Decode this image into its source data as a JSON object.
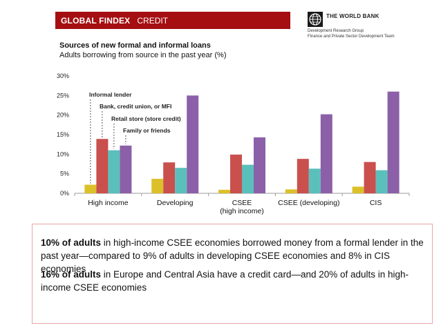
{
  "header": {
    "brand": "GLOBAL FINDEX",
    "section": "CREDIT"
  },
  "world_bank": {
    "name": "THE WORLD BANK",
    "line1": "Development Research Group",
    "line2": "Finance and Private Sector Development Team"
  },
  "colors": {
    "header_red": "#a50f12",
    "corner_green": "#a6c9b1",
    "callout_border": "#e8a6a6"
  },
  "chart_data": {
    "type": "bar",
    "title": "Sources of new formal and informal loans",
    "subtitle": "Adults borrowing from source in the past year (%)",
    "categories": [
      "High income",
      "Developing",
      "CSEE (high income)",
      "CSEE (developing)",
      "CIS"
    ],
    "category_lines": [
      [
        "High income"
      ],
      [
        "Developing"
      ],
      [
        "CSEE",
        "(high income)"
      ],
      [
        "CSEE (developing)"
      ],
      [
        "CIS"
      ]
    ],
    "ylim": [
      0,
      30
    ],
    "yticks": [
      "0%",
      "5%",
      "10%",
      "15%",
      "20%",
      "25%",
      "30%"
    ],
    "series": [
      {
        "name": "Informal lender",
        "color": "#dcc02a",
        "values": [
          2.2,
          3.7,
          0.9,
          1.0,
          1.7
        ]
      },
      {
        "name": "Bank, credit union, or MFI",
        "color": "#c9504d",
        "values": [
          13.9,
          7.9,
          9.9,
          8.8,
          8.0
        ]
      },
      {
        "name": "Retail store (store credit)",
        "color": "#5bbfbb",
        "values": [
          11.0,
          6.5,
          7.3,
          6.3,
          5.9
        ]
      },
      {
        "name": "Family or friends",
        "color": "#8b60a8",
        "values": [
          12.2,
          25.0,
          14.3,
          20.2,
          26.0
        ]
      }
    ]
  },
  "callout": {
    "p1_bold": "10% of adults",
    "p1_rest": " in high-income CSEE economies borrowed money from a formal lender in the past year—compared to 9% of adults in developing CSEE economies and 8% in CIS economies",
    "p2_bold": "16% of adults",
    "p2_rest": " in Europe and Central Asia have a credit card—and 20% of adults in high-income CSEE economies"
  }
}
